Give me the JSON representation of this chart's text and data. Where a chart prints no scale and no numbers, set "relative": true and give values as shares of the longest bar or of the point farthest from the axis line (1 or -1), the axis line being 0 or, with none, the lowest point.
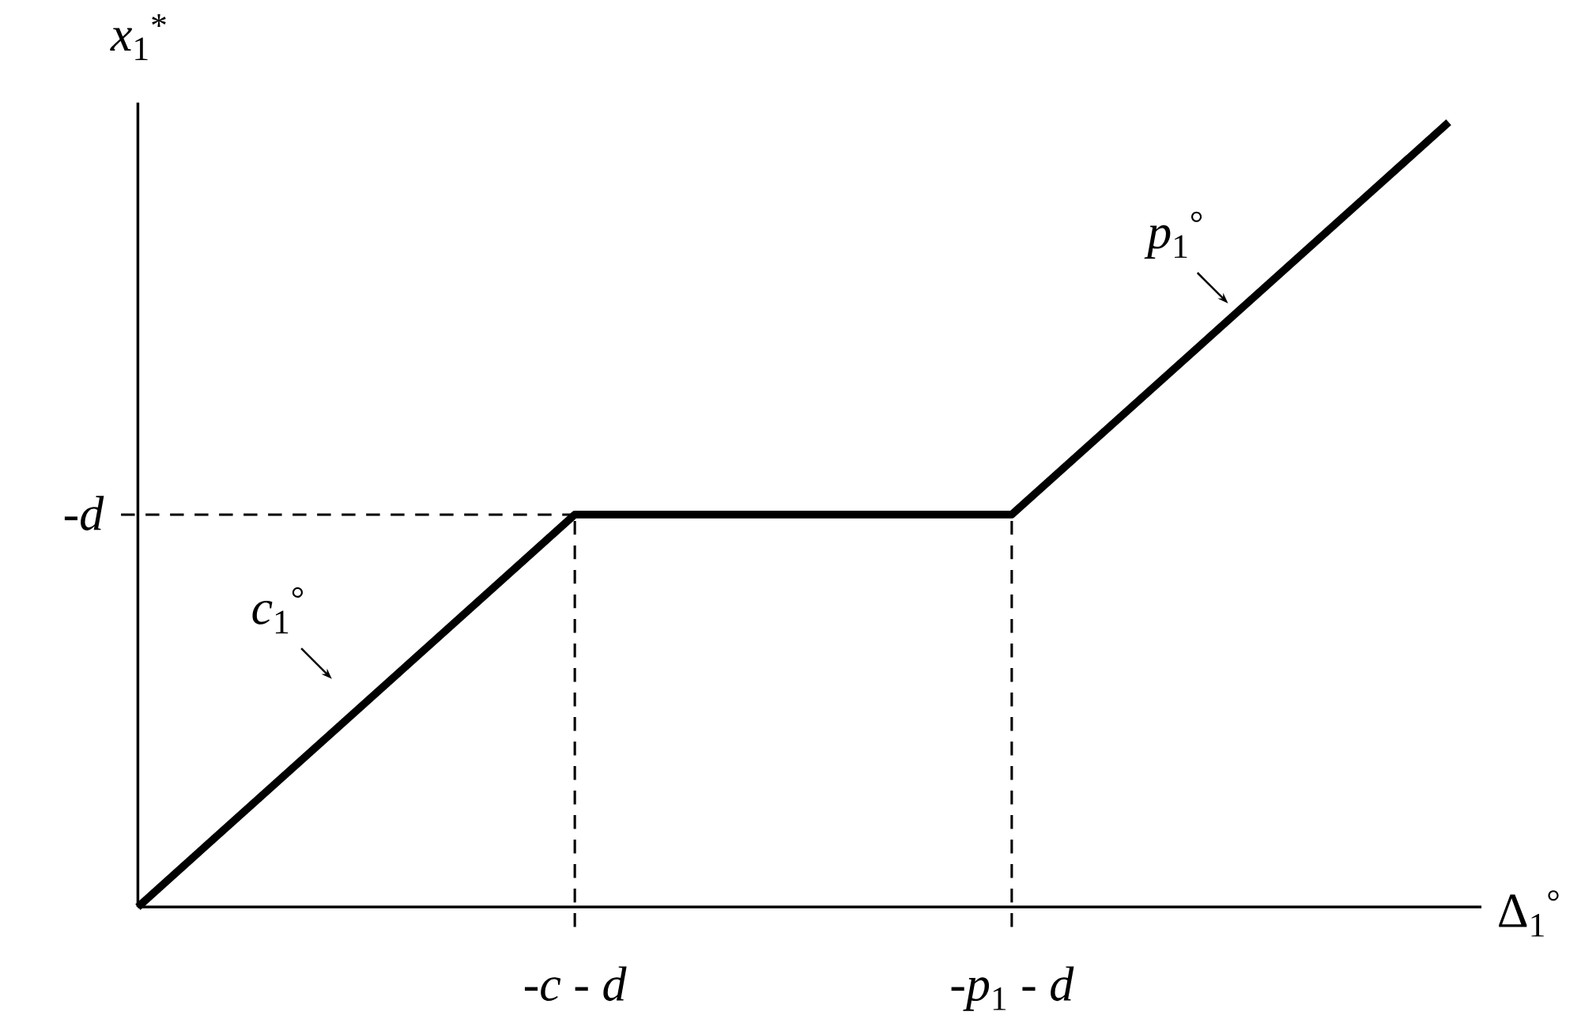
{
  "chart_data": {
    "type": "line",
    "relative": true,
    "xlabel": "Δ$_{1}$$^{°}$",
    "ylabel": "*x*$_{1}$$^{*}$",
    "categories": [
      null,
      "-*c* - *d*",
      "-*p*$_{1}$ - *d*",
      null
    ],
    "series": [
      {
        "color": "#000000",
        "values": [
          0,
          0.5,
          0.5,
          1
        ]
      }
    ],
    "marker": "none",
    "line_style": "solid",
    "ref_lines": [
      {
        "axis": "y",
        "value": 0.5,
        "label": "-*d*",
        "line_style": "dashed",
        "color": "#000000"
      },
      {
        "axis": "x",
        "value": "-*c* - *d*",
        "line_style": "dashed",
        "color": "#000000"
      },
      {
        "axis": "x",
        "value": "-*p*$_{1}$ - *d*",
        "line_style": "dashed",
        "color": "#000000"
      }
    ],
    "annotations": [
      "*c*$_{1}$$^{°}$",
      "*p*$_{1}$$^{°}$"
    ]
  }
}
